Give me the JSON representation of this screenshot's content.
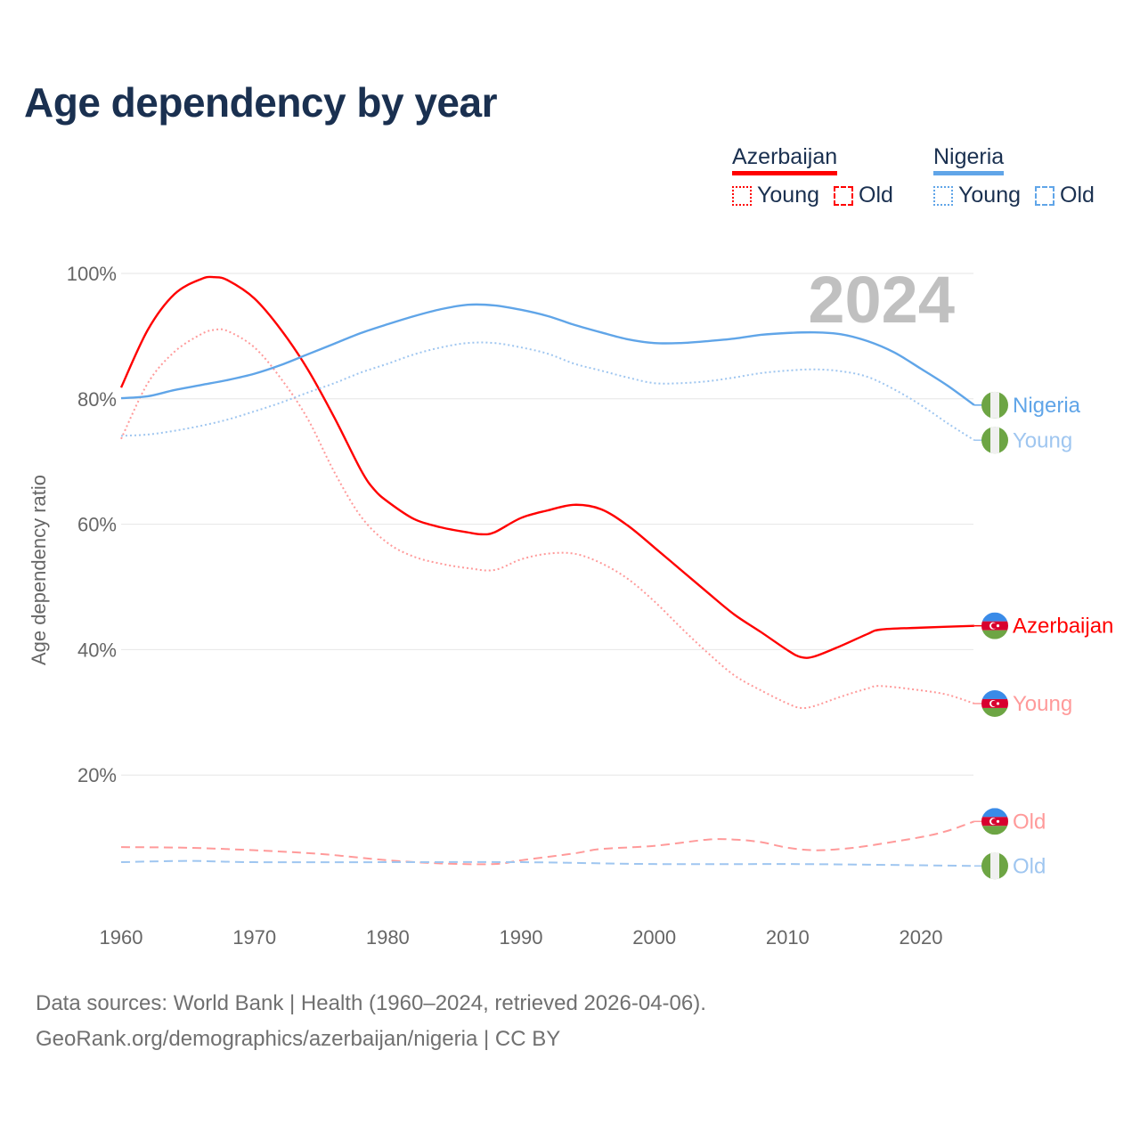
{
  "title": "Age dependency by year",
  "legend": [
    {
      "country": "Azerbaijan",
      "color": "#ff0000",
      "light": "#ff9a9a",
      "items": [
        "Young",
        "Old"
      ]
    },
    {
      "country": "Nigeria",
      "color": "#60a5e8",
      "light": "#9fc6f0",
      "items": [
        "Young",
        "Old"
      ]
    }
  ],
  "year_watermark": "2024",
  "footer": {
    "line1": "Data sources: World Bank | Health (1960–2024, retrieved 2026-04-06).",
    "line2": "GeoRank.org/demographics/azerbaijan/nigeria | CC BY"
  },
  "chart_data": {
    "type": "line",
    "title": "Age dependency by year",
    "xlabel": "",
    "ylabel": "Age dependency ratio",
    "xlim": [
      1960,
      2024
    ],
    "ylim": [
      0,
      100
    ],
    "x_ticks": [
      "1960",
      "1970",
      "1980",
      "1990",
      "2000",
      "2010",
      "2020"
    ],
    "y_ticks": [
      "20%",
      "40%",
      "60%",
      "80%",
      "100%"
    ],
    "grid": true,
    "legend_position": "top-right",
    "series": [
      {
        "name": "Azerbaijan",
        "label": "Azerbaijan",
        "flag": "azerbaijan",
        "color": "#ff0000",
        "style": "solid",
        "points": [
          [
            1960,
            81.8
          ],
          [
            1962,
            91
          ],
          [
            1964,
            96.7
          ],
          [
            1966,
            99.1
          ],
          [
            1967,
            99.4
          ],
          [
            1968,
            98.9
          ],
          [
            1970,
            96
          ],
          [
            1972,
            91
          ],
          [
            1974,
            84.7
          ],
          [
            1976,
            77
          ],
          [
            1978,
            68.6
          ],
          [
            1979,
            65.5
          ],
          [
            1980,
            63.6
          ],
          [
            1982,
            60.8
          ],
          [
            1984,
            59.5
          ],
          [
            1986,
            58.7
          ],
          [
            1987,
            58.4
          ],
          [
            1988,
            58.7
          ],
          [
            1990,
            61
          ],
          [
            1992,
            62.2
          ],
          [
            1994,
            63.1
          ],
          [
            1996,
            62.4
          ],
          [
            1998,
            59.8
          ],
          [
            2000,
            56.3
          ],
          [
            2002,
            52.7
          ],
          [
            2004,
            49.1
          ],
          [
            2006,
            45.6
          ],
          [
            2008,
            42.8
          ],
          [
            2010,
            39.9
          ],
          [
            2011,
            38.8
          ],
          [
            2012,
            38.9
          ],
          [
            2014,
            40.6
          ],
          [
            2016,
            42.5
          ],
          [
            2017,
            43.2
          ],
          [
            2020,
            43.5
          ],
          [
            2024,
            43.8
          ]
        ]
      },
      {
        "name": "Azerbaijan Young",
        "label": "Young",
        "flag": "azerbaijan",
        "color": "#ff9a9a",
        "style": "dotted",
        "points": [
          [
            1960,
            73.6
          ],
          [
            1962,
            82.5
          ],
          [
            1964,
            87.5
          ],
          [
            1966,
            90.3
          ],
          [
            1967,
            91
          ],
          [
            1968,
            90.8
          ],
          [
            1970,
            88.2
          ],
          [
            1972,
            83.2
          ],
          [
            1974,
            76.8
          ],
          [
            1976,
            68.3
          ],
          [
            1978,
            61.2
          ],
          [
            1980,
            57
          ],
          [
            1982,
            54.8
          ],
          [
            1984,
            53.7
          ],
          [
            1986,
            53
          ],
          [
            1988,
            52.7
          ],
          [
            1990,
            54.4
          ],
          [
            1992,
            55.3
          ],
          [
            1994,
            55.3
          ],
          [
            1996,
            53.8
          ],
          [
            1998,
            51.3
          ],
          [
            2000,
            47.7
          ],
          [
            2002,
            43.5
          ],
          [
            2004,
            39.5
          ],
          [
            2006,
            35.9
          ],
          [
            2008,
            33.5
          ],
          [
            2010,
            31.4
          ],
          [
            2011,
            30.7
          ],
          [
            2012,
            31
          ],
          [
            2014,
            32.5
          ],
          [
            2016,
            33.8
          ],
          [
            2017,
            34.2
          ],
          [
            2020,
            33.5
          ],
          [
            2022,
            32.8
          ],
          [
            2024,
            31.4
          ]
        ]
      },
      {
        "name": "Azerbaijan Old",
        "label": "Old",
        "flag": "azerbaijan",
        "color": "#ff9a9a",
        "style": "dashed",
        "points": [
          [
            1960,
            8.5
          ],
          [
            1965,
            8.4
          ],
          [
            1970,
            8
          ],
          [
            1975,
            7.4
          ],
          [
            1980,
            6.4
          ],
          [
            1984,
            5.9
          ],
          [
            1988,
            5.8
          ],
          [
            1990,
            6.4
          ],
          [
            1994,
            7.5
          ],
          [
            1996,
            8.2
          ],
          [
            2000,
            8.7
          ],
          [
            2004,
            9.7
          ],
          [
            2006,
            9.7
          ],
          [
            2008,
            9.3
          ],
          [
            2010,
            8.4
          ],
          [
            2012,
            8
          ],
          [
            2014,
            8.2
          ],
          [
            2016,
            8.7
          ],
          [
            2020,
            10.1
          ],
          [
            2022,
            11.1
          ],
          [
            2024,
            12.6
          ]
        ]
      },
      {
        "name": "Nigeria",
        "label": "Nigeria",
        "flag": "nigeria",
        "color": "#60a5e8",
        "style": "solid",
        "points": [
          [
            1960,
            80.1
          ],
          [
            1962,
            80.4
          ],
          [
            1964,
            81.4
          ],
          [
            1966,
            82.2
          ],
          [
            1968,
            83
          ],
          [
            1970,
            84
          ],
          [
            1972,
            85.4
          ],
          [
            1974,
            87.1
          ],
          [
            1976,
            88.8
          ],
          [
            1978,
            90.5
          ],
          [
            1980,
            91.9
          ],
          [
            1982,
            93.2
          ],
          [
            1984,
            94.3
          ],
          [
            1986,
            95
          ],
          [
            1988,
            94.9
          ],
          [
            1990,
            94.2
          ],
          [
            1992,
            93.2
          ],
          [
            1994,
            91.8
          ],
          [
            1996,
            90.6
          ],
          [
            1998,
            89.5
          ],
          [
            2000,
            88.9
          ],
          [
            2002,
            88.9
          ],
          [
            2004,
            89.2
          ],
          [
            2006,
            89.6
          ],
          [
            2008,
            90.2
          ],
          [
            2010,
            90.5
          ],
          [
            2012,
            90.6
          ],
          [
            2014,
            90.3
          ],
          [
            2016,
            89.2
          ],
          [
            2018,
            87.4
          ],
          [
            2020,
            84.8
          ],
          [
            2022,
            82.1
          ],
          [
            2024,
            79
          ]
        ]
      },
      {
        "name": "Nigeria Young",
        "label": "Young",
        "flag": "nigeria",
        "color": "#9fc6f0",
        "style": "dotted",
        "points": [
          [
            1960,
            74.1
          ],
          [
            1962,
            74.3
          ],
          [
            1964,
            74.9
          ],
          [
            1966,
            75.7
          ],
          [
            1968,
            76.7
          ],
          [
            1970,
            78
          ],
          [
            1972,
            79.4
          ],
          [
            1974,
            81
          ],
          [
            1976,
            82.5
          ],
          [
            1978,
            84.2
          ],
          [
            1980,
            85.6
          ],
          [
            1982,
            87.1
          ],
          [
            1984,
            88.2
          ],
          [
            1986,
            88.9
          ],
          [
            1988,
            88.9
          ],
          [
            1990,
            88.2
          ],
          [
            1992,
            87.2
          ],
          [
            1994,
            85.6
          ],
          [
            1996,
            84.5
          ],
          [
            1998,
            83.4
          ],
          [
            2000,
            82.5
          ],
          [
            2002,
            82.5
          ],
          [
            2004,
            82.8
          ],
          [
            2006,
            83.4
          ],
          [
            2008,
            84.1
          ],
          [
            2010,
            84.5
          ],
          [
            2012,
            84.7
          ],
          [
            2014,
            84.4
          ],
          [
            2016,
            83.5
          ],
          [
            2018,
            81.5
          ],
          [
            2020,
            79
          ],
          [
            2022,
            76.1
          ],
          [
            2024,
            73.4
          ]
        ]
      },
      {
        "name": "Nigeria Old",
        "label": "Old",
        "flag": "nigeria",
        "color": "#9fc6f0",
        "style": "dashed",
        "points": [
          [
            1960,
            6.1
          ],
          [
            1965,
            6.3
          ],
          [
            1970,
            6.1
          ],
          [
            1980,
            6.1
          ],
          [
            1990,
            6.1
          ],
          [
            2000,
            5.8
          ],
          [
            2010,
            5.8
          ],
          [
            2016,
            5.7
          ],
          [
            2024,
            5.5
          ]
        ]
      }
    ]
  }
}
